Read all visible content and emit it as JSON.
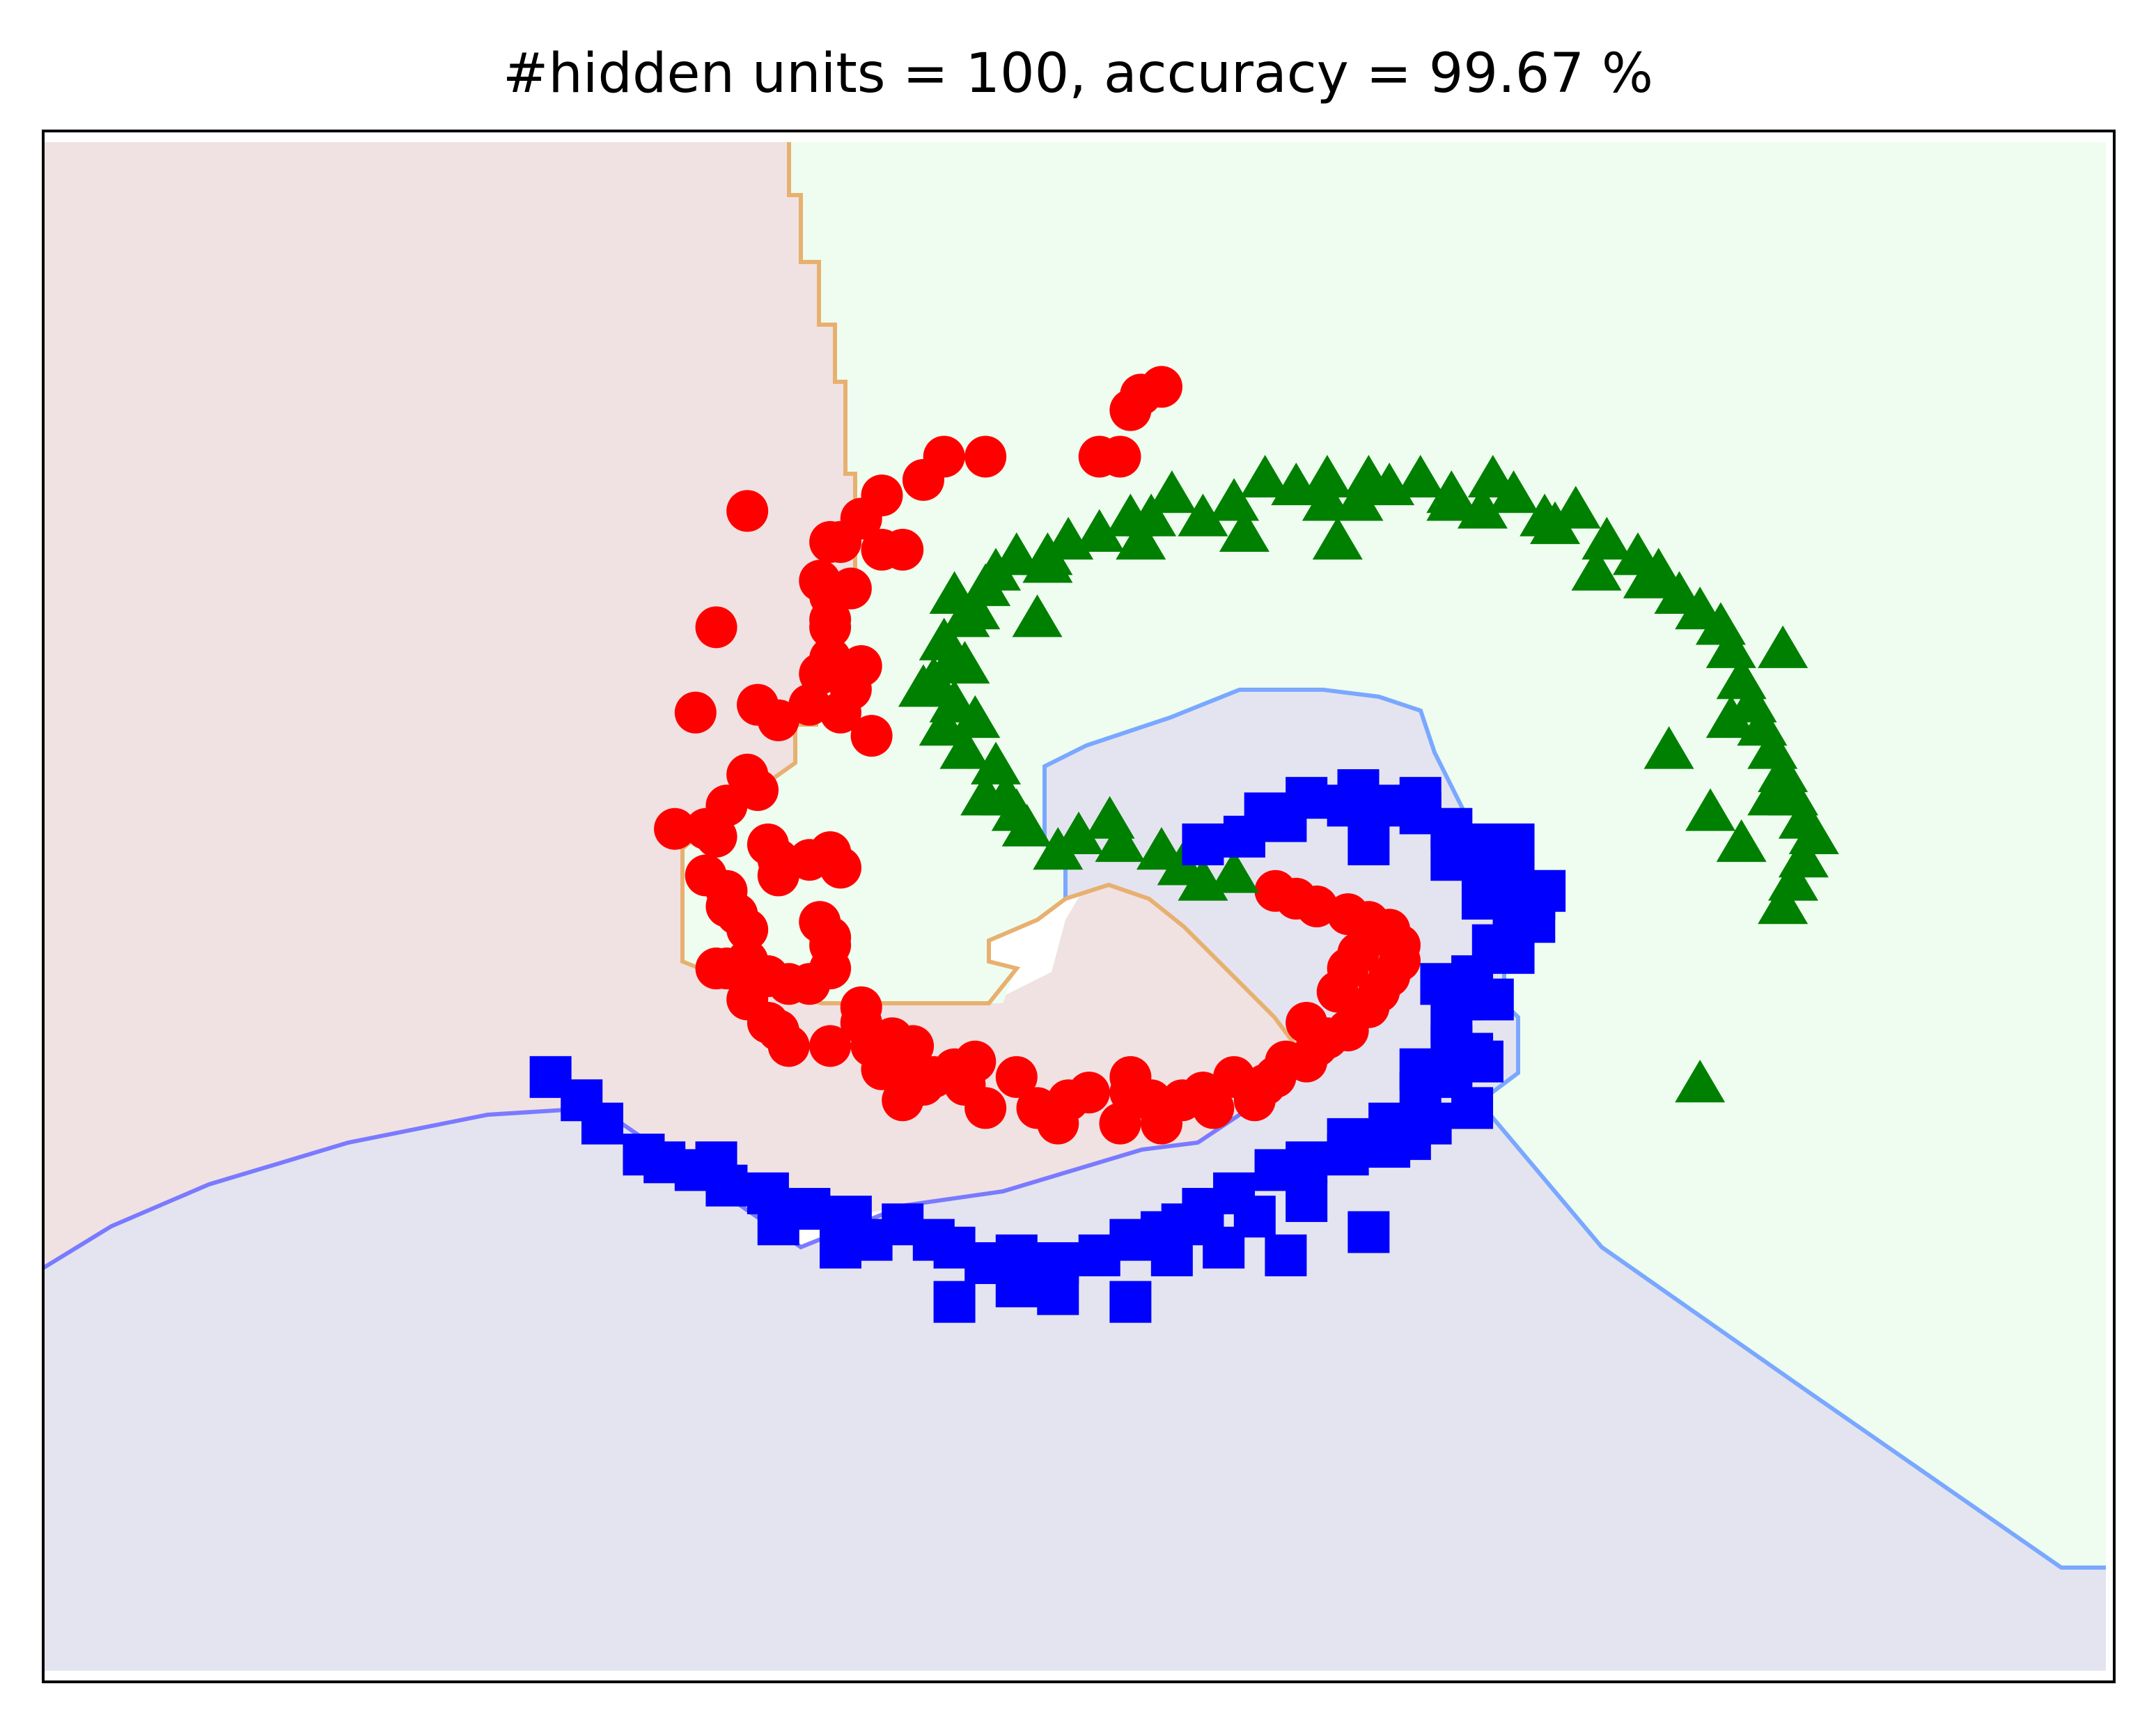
{
  "chart_data": {
    "type": "scatter",
    "title": "#hidden units = 100, accuracy = 99.67 %",
    "xlabel": "",
    "ylabel": "",
    "xlim": [
      -1.0,
      1.0
    ],
    "ylim": [
      -1.0,
      1.0
    ],
    "grid": false,
    "axis_ticks": false,
    "series": [
      {
        "marker": "circle",
        "color": "#ff0000",
        "region_color": "#f0e2e2",
        "points": [
          [
            0.08,
            0.67
          ],
          [
            0.06,
            0.66
          ],
          [
            0.05,
            0.64
          ],
          [
            0.04,
            0.58
          ],
          [
            -0.09,
            0.58
          ],
          [
            -0.13,
            0.58
          ],
          [
            -0.15,
            0.55
          ],
          [
            -0.21,
            0.5
          ],
          [
            -0.19,
            0.53
          ],
          [
            -0.23,
            0.47
          ],
          [
            -0.24,
            0.47
          ],
          [
            -0.17,
            0.46
          ],
          [
            -0.19,
            0.46
          ],
          [
            -0.24,
            0.4
          ],
          [
            -0.25,
            0.42
          ],
          [
            -0.22,
            0.41
          ],
          [
            -0.24,
            0.37
          ],
          [
            -0.24,
            0.36
          ],
          [
            -0.24,
            0.32
          ],
          [
            -0.21,
            0.31
          ],
          [
            -0.25,
            0.3
          ],
          [
            -0.22,
            0.28
          ],
          [
            -0.26,
            0.26
          ],
          [
            -0.23,
            0.25
          ],
          [
            -0.31,
            0.26
          ],
          [
            -0.29,
            0.24
          ],
          [
            -0.2,
            0.22
          ],
          [
            -0.32,
            0.17
          ],
          [
            -0.31,
            0.15
          ],
          [
            -0.34,
            0.13
          ],
          [
            -0.36,
            0.1
          ],
          [
            -0.26,
            0.06
          ],
          [
            -0.39,
            0.1
          ],
          [
            -0.35,
            0.09
          ],
          [
            -0.3,
            0.08
          ],
          [
            -0.29,
            0.06
          ],
          [
            -0.23,
            0.05
          ],
          [
            -0.24,
            0.07
          ],
          [
            -0.29,
            0.04
          ],
          [
            -0.36,
            0.04
          ],
          [
            -0.34,
            0.02
          ],
          [
            -0.34,
            0.0
          ],
          [
            -0.33,
            -0.01
          ],
          [
            -0.32,
            -0.03
          ],
          [
            -0.25,
            -0.02
          ],
          [
            -0.24,
            -0.04
          ],
          [
            -0.24,
            -0.05
          ],
          [
            -0.35,
            -0.08
          ],
          [
            -0.34,
            -0.08
          ],
          [
            -0.3,
            -0.09
          ],
          [
            -0.28,
            -0.1
          ],
          [
            -0.26,
            -0.1
          ],
          [
            -0.24,
            -0.08
          ],
          [
            -0.21,
            -0.13
          ],
          [
            -0.21,
            -0.15
          ],
          [
            -0.32,
            -0.12
          ],
          [
            -0.3,
            -0.15
          ],
          [
            -0.29,
            -0.16
          ],
          [
            -0.28,
            -0.18
          ],
          [
            -0.24,
            -0.18
          ],
          [
            -0.2,
            -0.18
          ],
          [
            -0.18,
            -0.17
          ],
          [
            -0.16,
            -0.18
          ],
          [
            -0.19,
            -0.21
          ],
          [
            -0.16,
            -0.21
          ],
          [
            -0.15,
            -0.23
          ],
          [
            -0.17,
            -0.25
          ],
          [
            -0.14,
            -0.22
          ],
          [
            -0.12,
            -0.21
          ],
          [
            -0.11,
            -0.23
          ],
          [
            -0.09,
            -0.26
          ],
          [
            -0.06,
            -0.22
          ],
          [
            -0.04,
            -0.26
          ],
          [
            -0.02,
            -0.28
          ],
          [
            -0.01,
            -0.25
          ],
          [
            0.01,
            -0.24
          ],
          [
            0.04,
            -0.28
          ],
          [
            0.05,
            -0.24
          ],
          [
            0.07,
            -0.25
          ],
          [
            0.08,
            -0.28
          ],
          [
            0.1,
            -0.25
          ],
          [
            0.12,
            -0.24
          ],
          [
            0.13,
            -0.26
          ],
          [
            0.15,
            -0.22
          ],
          [
            0.17,
            -0.25
          ],
          [
            0.18,
            -0.23
          ],
          [
            0.19,
            -0.22
          ],
          [
            0.2,
            -0.2
          ],
          [
            0.22,
            -0.2
          ],
          [
            0.23,
            -0.18
          ],
          [
            0.24,
            -0.17
          ],
          [
            0.26,
            -0.16
          ],
          [
            0.28,
            -0.13
          ],
          [
            0.29,
            -0.11
          ],
          [
            0.3,
            -0.09
          ],
          [
            0.31,
            -0.07
          ],
          [
            0.31,
            -0.05
          ],
          [
            0.3,
            -0.03
          ],
          [
            0.28,
            -0.02
          ],
          [
            0.26,
            -0.01
          ],
          [
            0.23,
            0.0
          ],
          [
            0.21,
            0.01
          ],
          [
            0.19,
            0.02
          ],
          [
            0.28,
            -0.04
          ],
          [
            0.27,
            -0.06
          ],
          [
            0.26,
            -0.08
          ],
          [
            0.25,
            -0.11
          ],
          [
            0.22,
            -0.15
          ],
          [
            0.05,
            -0.22
          ],
          [
            -0.1,
            -0.2
          ],
          [
            -0.32,
            -0.07
          ],
          [
            -0.37,
            0.25
          ],
          [
            -0.32,
            0.51
          ],
          [
            -0.23,
            0.47
          ],
          [
            0.02,
            0.58
          ],
          [
            -0.35,
            0.36
          ]
        ]
      },
      {
        "marker": "triangle",
        "color": "#008000",
        "region_color": "#eefdef",
        "points": [
          [
            0.12,
            0.03
          ],
          [
            0.15,
            0.04
          ],
          [
            0.1,
            0.05
          ],
          [
            0.08,
            0.07
          ],
          [
            0.04,
            0.08
          ],
          [
            0.0,
            0.09
          ],
          [
            -0.02,
            0.07
          ],
          [
            -0.05,
            0.1
          ],
          [
            -0.06,
            0.12
          ],
          [
            -0.09,
            0.14
          ],
          [
            -0.08,
            0.18
          ],
          [
            -0.11,
            0.2
          ],
          [
            -0.13,
            0.23
          ],
          [
            -0.12,
            0.26
          ],
          [
            -0.14,
            0.29
          ],
          [
            -0.11,
            0.31
          ],
          [
            -0.13,
            0.34
          ],
          [
            -0.11,
            0.37
          ],
          [
            -0.12,
            0.4
          ],
          [
            -0.09,
            0.41
          ],
          [
            -0.08,
            0.43
          ],
          [
            -0.06,
            0.45
          ],
          [
            -0.03,
            0.45
          ],
          [
            -0.01,
            0.47
          ],
          [
            0.02,
            0.48
          ],
          [
            0.05,
            0.5
          ],
          [
            0.07,
            0.5
          ],
          [
            0.09,
            0.53
          ],
          [
            0.12,
            0.5
          ],
          [
            0.15,
            0.52
          ],
          [
            0.18,
            0.55
          ],
          [
            0.21,
            0.54
          ],
          [
            0.24,
            0.55
          ],
          [
            0.27,
            0.52
          ],
          [
            0.3,
            0.54
          ],
          [
            0.33,
            0.55
          ],
          [
            0.36,
            0.52
          ],
          [
            0.39,
            0.51
          ],
          [
            0.42,
            0.53
          ],
          [
            0.45,
            0.5
          ],
          [
            0.48,
            0.51
          ],
          [
            0.51,
            0.47
          ],
          [
            0.54,
            0.45
          ],
          [
            0.56,
            0.43
          ],
          [
            0.58,
            0.4
          ],
          [
            0.6,
            0.38
          ],
          [
            0.62,
            0.36
          ],
          [
            0.63,
            0.33
          ],
          [
            0.64,
            0.29
          ],
          [
            0.65,
            0.26
          ],
          [
            0.66,
            0.23
          ],
          [
            0.67,
            0.2
          ],
          [
            0.68,
            0.17
          ],
          [
            0.69,
            0.14
          ],
          [
            0.7,
            0.11
          ],
          [
            0.71,
            0.09
          ],
          [
            0.7,
            0.06
          ],
          [
            0.69,
            0.03
          ],
          [
            0.68,
            0.0
          ],
          [
            0.64,
            0.08
          ],
          [
            0.61,
            0.12
          ],
          [
            0.57,
            0.2
          ],
          [
            0.5,
            0.43
          ],
          [
            0.46,
            0.49
          ],
          [
            0.4,
            0.55
          ],
          [
            0.36,
            0.53
          ],
          [
            0.28,
            0.55
          ],
          [
            0.24,
            0.52
          ],
          [
            0.16,
            0.48
          ],
          [
            0.06,
            0.47
          ],
          [
            -0.03,
            0.44
          ],
          [
            -0.1,
            0.38
          ],
          [
            -0.12,
            0.32
          ],
          [
            -0.1,
            0.24
          ],
          [
            -0.07,
            0.14
          ],
          [
            0.03,
            0.11
          ],
          [
            0.6,
            -0.23
          ],
          [
            0.68,
            0.33
          ],
          [
            0.67,
            0.14
          ],
          [
            -0.15,
            0.28
          ],
          [
            0.55,
            0.42
          ],
          [
            0.25,
            0.47
          ],
          [
            -0.04,
            0.37
          ],
          [
            0.63,
            0.24
          ]
        ]
      },
      {
        "marker": "square",
        "color": "#0000ff",
        "region_color": "#e4e4f0",
        "points": [
          [
            0.12,
            0.08
          ],
          [
            0.16,
            0.09
          ],
          [
            0.18,
            0.12
          ],
          [
            0.22,
            0.14
          ],
          [
            0.26,
            0.13
          ],
          [
            0.3,
            0.13
          ],
          [
            0.33,
            0.12
          ],
          [
            0.36,
            0.1
          ],
          [
            0.38,
            0.08
          ],
          [
            0.4,
            0.05
          ],
          [
            0.42,
            0.03
          ],
          [
            0.45,
            0.02
          ],
          [
            0.44,
            0.01
          ],
          [
            0.42,
            -0.02
          ],
          [
            0.4,
            -0.05
          ],
          [
            0.38,
            -0.09
          ],
          [
            0.37,
            -0.12
          ],
          [
            0.36,
            -0.15
          ],
          [
            0.38,
            -0.19
          ],
          [
            0.39,
            -0.2
          ],
          [
            0.36,
            -0.22
          ],
          [
            0.33,
            -0.24
          ],
          [
            0.34,
            -0.28
          ],
          [
            0.32,
            -0.3
          ],
          [
            0.3,
            -0.31
          ],
          [
            0.26,
            -0.32
          ],
          [
            0.22,
            -0.33
          ],
          [
            0.19,
            -0.34
          ],
          [
            0.15,
            -0.37
          ],
          [
            0.12,
            -0.39
          ],
          [
            0.1,
            -0.41
          ],
          [
            0.08,
            -0.42
          ],
          [
            0.05,
            -0.43
          ],
          [
            0.02,
            -0.45
          ],
          [
            -0.02,
            -0.46
          ],
          [
            -0.06,
            -0.45
          ],
          [
            -0.09,
            -0.46
          ],
          [
            -0.12,
            -0.44
          ],
          [
            -0.14,
            -0.43
          ],
          [
            -0.17,
            -0.41
          ],
          [
            -0.2,
            -0.43
          ],
          [
            -0.22,
            -0.4
          ],
          [
            -0.26,
            -0.39
          ],
          [
            -0.3,
            -0.37
          ],
          [
            -0.34,
            -0.36
          ],
          [
            -0.37,
            -0.34
          ],
          [
            -0.4,
            -0.33
          ],
          [
            -0.42,
            -0.32
          ],
          [
            -0.46,
            -0.28
          ],
          [
            -0.48,
            -0.25
          ],
          [
            -0.51,
            -0.22
          ],
          [
            -0.29,
            -0.41
          ],
          [
            -0.23,
            -0.44
          ],
          [
            -0.12,
            -0.51
          ],
          [
            -0.06,
            -0.49
          ],
          [
            -0.02,
            -0.5
          ],
          [
            0.05,
            -0.51
          ],
          [
            0.14,
            -0.44
          ],
          [
            0.2,
            -0.45
          ],
          [
            0.22,
            -0.38
          ],
          [
            0.26,
            -0.3
          ],
          [
            0.3,
            -0.28
          ],
          [
            0.33,
            -0.21
          ],
          [
            0.36,
            -0.18
          ],
          [
            0.4,
            -0.12
          ],
          [
            0.42,
            -0.06
          ],
          [
            0.44,
            -0.02
          ],
          [
            0.42,
            0.08
          ],
          [
            0.36,
            0.06
          ],
          [
            0.28,
            0.08
          ],
          [
            0.2,
            0.11
          ],
          [
            0.27,
            0.15
          ],
          [
            0.17,
            -0.4
          ],
          [
            0.28,
            -0.42
          ],
          [
            0.35,
            -0.1
          ],
          [
            0.39,
            0.01
          ],
          [
            0.33,
            0.14
          ],
          [
            0.09,
            -0.45
          ],
          [
            -0.35,
            -0.33
          ],
          [
            0.38,
            -0.26
          ]
        ]
      }
    ]
  }
}
